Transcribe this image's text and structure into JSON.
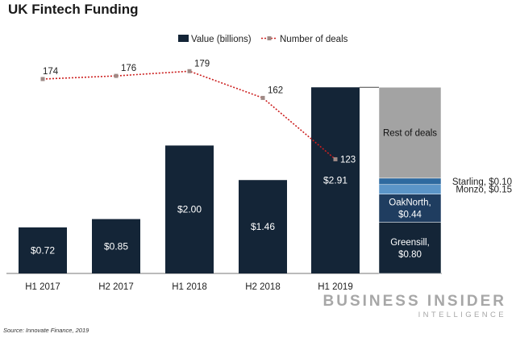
{
  "title": "UK Fintech Funding",
  "source": "Source: Innovate Finance, 2019",
  "logo": {
    "line1": "BUSINESS INSIDER",
    "line2": "INTELLIGENCE"
  },
  "chart_data": {
    "type": "bar",
    "categories": [
      "H1 2017",
      "H2 2017",
      "H1 2018",
      "H2 2018",
      "H1 2019"
    ],
    "series": [
      {
        "name": "Value (billions)",
        "type": "bar",
        "values": [
          0.72,
          0.85,
          2.0,
          1.46,
          2.91
        ],
        "labels": [
          "$0.72",
          "$0.85",
          "$2.00",
          "$1.46",
          "$2.91"
        ],
        "color": "#142537"
      },
      {
        "name": "Number of deals",
        "type": "line",
        "values": [
          174,
          176,
          179,
          162,
          123
        ],
        "color": "#cc1f1f",
        "marker_color": "#9e8a86"
      }
    ],
    "breakdown": {
      "total": 2.91,
      "segments": [
        {
          "name": "Greensill",
          "value": 0.8,
          "label": [
            "Greensill,",
            "$0.80"
          ],
          "color": "#142537",
          "label_position": "inside"
        },
        {
          "name": "OakNorth",
          "value": 0.44,
          "label": [
            "OakNorth,",
            "$0.44"
          ],
          "color": "#1f3d60",
          "label_position": "inside"
        },
        {
          "name": "Monzo",
          "value": 0.15,
          "label": [
            "Monzo, $0.15"
          ],
          "color": "#5b95c8",
          "label_position": "outside"
        },
        {
          "name": "Starling",
          "value": 0.1,
          "label": [
            "Starling, $0.10"
          ],
          "color": "#2e6aa0",
          "label_position": "outside"
        },
        {
          "name": "Rest of deals",
          "value": 1.42,
          "label": [
            "Rest of deals"
          ],
          "color": "#a3a3a3",
          "label_position": "inside"
        }
      ]
    },
    "legend": "top-center",
    "grid": false
  }
}
